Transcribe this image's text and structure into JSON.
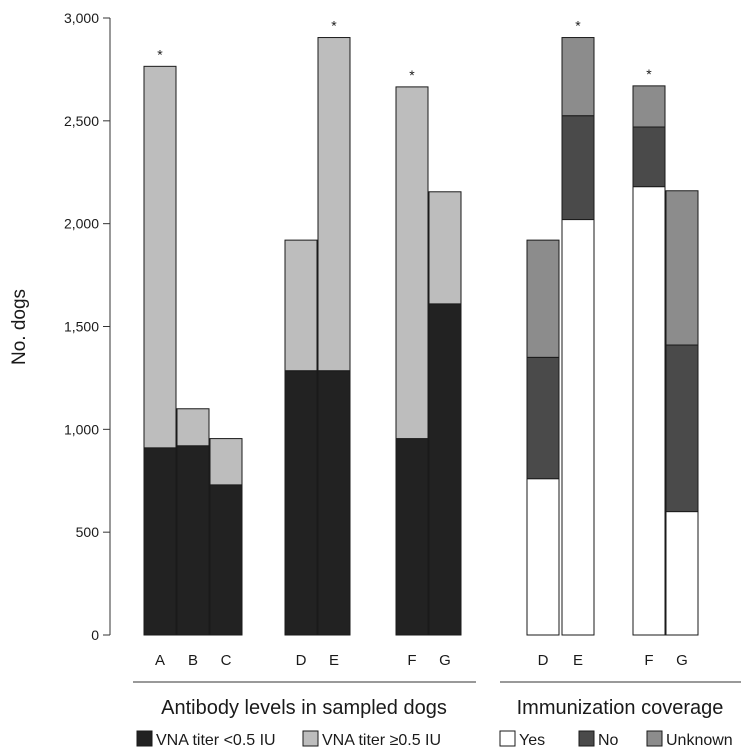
{
  "chart_data": {
    "type": "bar",
    "stacked": true,
    "ylabel": "No. dogs",
    "ylim": [
      0,
      3000
    ],
    "yticks": [
      0,
      500,
      1000,
      1500,
      2000,
      2500,
      3000
    ],
    "ytick_labels": [
      "0",
      "500",
      "1,000",
      "1,500",
      "2,000",
      "2,500",
      "3,000"
    ],
    "grid": false,
    "legend_position": "bottom",
    "panels": [
      {
        "title": "Antibody levels in sampled dogs",
        "categories": [
          "A",
          "B",
          "C",
          "D",
          "E",
          "F",
          "G"
        ],
        "starred": [
          true,
          false,
          false,
          false,
          true,
          true,
          false
        ],
        "series": [
          {
            "name": "VNA titer <0.5 IU",
            "color": "#222222",
            "values": [
              910,
              920,
              730,
              1285,
              1285,
              955,
              1610
            ]
          },
          {
            "name": "VNA titer ≥0.5 IU",
            "color": "#bdbdbd",
            "values": [
              1855,
              180,
              225,
              635,
              1620,
              1710,
              545
            ]
          }
        ]
      },
      {
        "title": "Immunization coverage",
        "categories": [
          "D",
          "E",
          "F",
          "G"
        ],
        "starred": [
          false,
          true,
          true,
          false
        ],
        "series": [
          {
            "name": "Yes",
            "color": "#ffffff",
            "values": [
              760,
              2020,
              2180,
              600
            ]
          },
          {
            "name": "No",
            "color": "#4a4a4a",
            "values": [
              590,
              505,
              290,
              810
            ]
          },
          {
            "name": "Unknown",
            "color": "#8c8c8c",
            "values": [
              570,
              380,
              200,
              750
            ]
          }
        ]
      }
    ]
  },
  "legend": {
    "items": [
      {
        "label": "VNA titer <0.5 IU",
        "color": "#222222"
      },
      {
        "label": "VNA titer ≥0.5 IU",
        "color": "#bdbdbd"
      },
      {
        "label": "Yes",
        "color": "#ffffff"
      },
      {
        "label": "No",
        "color": "#4a4a4a"
      },
      {
        "label": "Unknown",
        "color": "#8c8c8c"
      }
    ]
  },
  "star_symbol": "*"
}
